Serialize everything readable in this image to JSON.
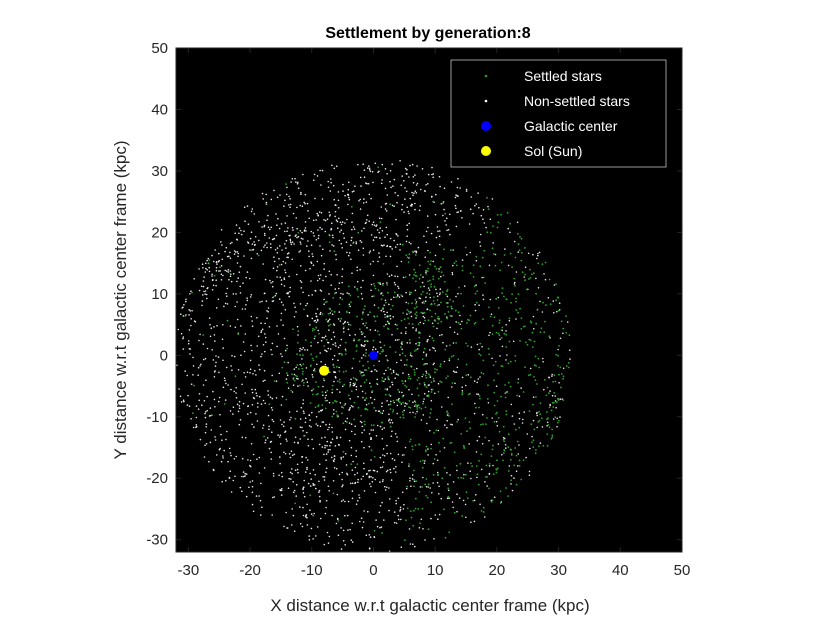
{
  "chart_data": {
    "type": "scatter",
    "title": "Settlement by generation:8",
    "xlabel": "X distance w.r.t galactic center frame (kpc)",
    "ylabel": "Y distance w.r.t galactic center frame (kpc)",
    "xlim": [
      -32,
      50
    ],
    "ylim": [
      -32,
      50
    ],
    "xticks": [
      -30,
      -20,
      -10,
      0,
      10,
      20,
      30,
      40,
      50
    ],
    "yticks": [
      -30,
      -20,
      -10,
      0,
      10,
      20,
      30,
      40,
      50
    ],
    "grid": false,
    "plot_background": "#000000",
    "legend_placement": "top-right",
    "series": [
      {
        "name": "Settled stars",
        "color": "#2ca02c",
        "marker": "dot",
        "region": "disk radius ~32 kpc centered at galactic center; concentrated in inner disk (radius < ~12 kpc) and right/lower-right half (x > ~5 kpc), plus the zone around Sol"
      },
      {
        "name": "Non-settled stars",
        "color": "#ffffff",
        "marker": "dot",
        "region": "disk of radius ~32 kpc centered at (0,0), with spiral arm structure"
      },
      {
        "name": "Galactic center",
        "color": "#0000ff",
        "marker": "circle",
        "points": [
          {
            "x": 0,
            "y": 0
          }
        ]
      },
      {
        "name": "Sol (Sun)",
        "color": "#ffff00",
        "marker": "circle",
        "points": [
          {
            "x": -8,
            "y": -2.5
          }
        ]
      }
    ]
  }
}
